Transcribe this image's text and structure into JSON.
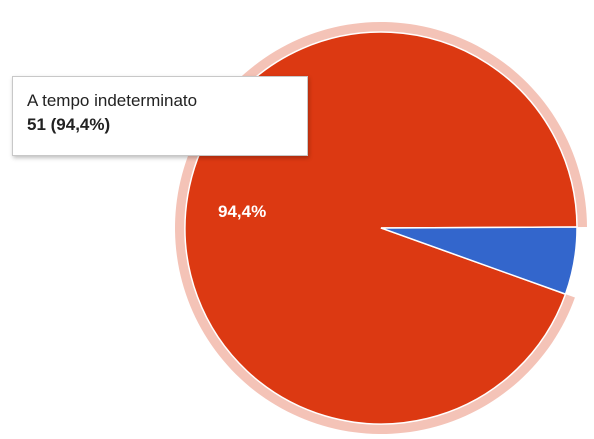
{
  "chart_data": {
    "type": "pie",
    "categories": [
      "A tempo indeterminato",
      ""
    ],
    "values": [
      51,
      3
    ],
    "percentages": [
      "94,4%",
      "5,6%"
    ],
    "slice_labels": [
      "94,4%",
      ""
    ],
    "colors": [
      "#dc3912",
      "#3366cc"
    ],
    "highlighted_slice": 0,
    "title": "",
    "legend": "none"
  },
  "tooltip": {
    "title": "A tempo indeterminato",
    "value": "51 (94,4%)"
  }
}
